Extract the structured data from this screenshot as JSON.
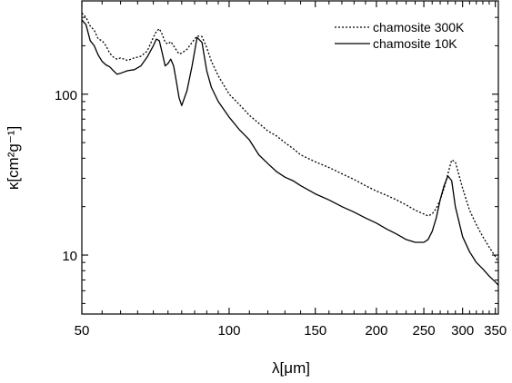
{
  "chart_data": {
    "type": "line",
    "title": "",
    "xlabel": "λ[μm]",
    "ylabel": "κ[cm²g⁻¹]",
    "xscale": "log",
    "yscale": "log",
    "xlim": [
      50,
      355
    ],
    "ylim": [
      4.3,
      380
    ],
    "grid": false,
    "legend_position": "top-right",
    "x_ticks": [
      {
        "value": 50,
        "label": "50"
      },
      {
        "value": 100,
        "label": "100"
      },
      {
        "value": 150,
        "label": "150"
      },
      {
        "value": 200,
        "label": "200"
      },
      {
        "value": 250,
        "label": "250"
      },
      {
        "value": 300,
        "label": "300"
      },
      {
        "value": 350,
        "label": "350"
      }
    ],
    "x_minor_ticks": [
      55,
      60,
      65,
      70,
      75,
      80,
      85,
      90,
      95,
      110,
      120,
      130,
      140,
      160,
      170,
      180,
      190,
      210,
      220,
      230,
      240,
      260,
      270,
      280,
      290,
      310,
      320,
      330,
      340
    ],
    "y_ticks": [
      {
        "value": 10,
        "label": "10"
      },
      {
        "value": 100,
        "label": "100"
      }
    ],
    "y_minor_ticks": [
      5,
      6,
      7,
      8,
      9,
      20,
      30,
      40,
      50,
      60,
      70,
      80,
      90,
      200,
      300
    ],
    "series": [
      {
        "name": "chamosite 300K",
        "style": "dotted",
        "color": "#000000",
        "x": [
          50,
          51,
          52,
          53,
          54,
          55,
          56,
          57,
          58,
          59,
          60,
          62,
          64,
          66,
          68,
          70,
          71,
          72,
          73,
          74,
          75,
          76,
          77,
          78,
          79,
          80,
          82,
          84,
          86,
          88,
          90,
          92,
          95,
          100,
          105,
          110,
          115,
          120,
          125,
          130,
          135,
          140,
          150,
          160,
          170,
          180,
          190,
          200,
          210,
          220,
          230,
          240,
          250,
          255,
          260,
          265,
          270,
          275,
          280,
          285,
          290,
          300,
          310,
          320,
          330,
          340,
          350,
          355
        ],
        "y": [
          320,
          300,
          265,
          250,
          220,
          215,
          200,
          180,
          170,
          165,
          168,
          162,
          168,
          172,
          185,
          225,
          245,
          255,
          235,
          210,
          205,
          212,
          200,
          188,
          178,
          180,
          190,
          210,
          230,
          228,
          195,
          160,
          130,
          100,
          86,
          74,
          66,
          59,
          55,
          50,
          46,
          42,
          38,
          35,
          32,
          29.5,
          27,
          25,
          23.5,
          22,
          20.5,
          19,
          18,
          17.5,
          18,
          19.5,
          22,
          26,
          32,
          39,
          38,
          26,
          19,
          15.5,
          13,
          11.2,
          9.8,
          9
        ]
      },
      {
        "name": "chamosite 10K",
        "style": "solid",
        "color": "#000000",
        "x": [
          50,
          51,
          52,
          53,
          54,
          55,
          56,
          57,
          58,
          59,
          60,
          62,
          64,
          66,
          68,
          70,
          71,
          72,
          73,
          74,
          75,
          76,
          77,
          78,
          79,
          80,
          82,
          84,
          86,
          88,
          90,
          92,
          95,
          100,
          105,
          110,
          115,
          120,
          125,
          130,
          135,
          140,
          150,
          160,
          170,
          180,
          190,
          200,
          210,
          220,
          230,
          240,
          250,
          255,
          260,
          265,
          270,
          275,
          280,
          285,
          290,
          300,
          310,
          320,
          330,
          340,
          350,
          355
        ],
        "y": [
          290,
          270,
          215,
          200,
          175,
          160,
          152,
          148,
          140,
          133,
          135,
          140,
          142,
          150,
          170,
          200,
          220,
          215,
          180,
          150,
          155,
          165,
          150,
          120,
          95,
          85,
          105,
          150,
          225,
          210,
          140,
          110,
          90,
          72,
          60,
          52,
          42,
          37,
          33,
          30.5,
          29,
          27,
          24,
          22,
          20,
          18.5,
          17,
          15.8,
          14.5,
          13.5,
          12.5,
          12,
          12,
          12.5,
          14,
          17,
          22,
          27,
          31,
          29,
          20,
          13,
          10.5,
          9,
          8.2,
          7.4,
          6.8,
          6.5
        ]
      }
    ]
  }
}
